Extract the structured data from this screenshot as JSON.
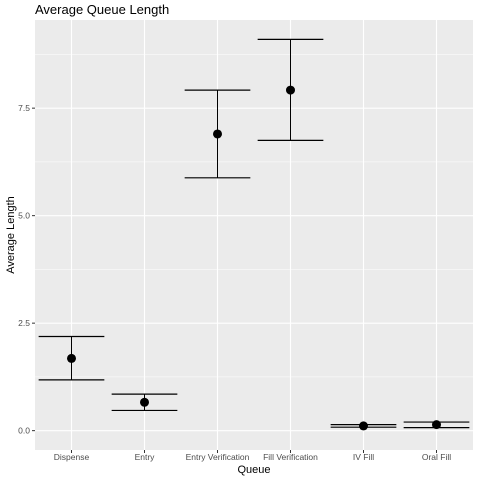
{
  "colors": {
    "panel_background": "#EBEBEB",
    "grid_major": "#FFFFFF",
    "point": "#000000",
    "errorbar": "#000000"
  },
  "chart_data": {
    "type": "scatter",
    "title": "Average Queue Length",
    "xlabel": "Queue",
    "ylabel": "Average Length",
    "categories": [
      "Dispense",
      "Entry",
      "Entry Verification",
      "Fill Verification",
      "IV Fill",
      "Oral Fill"
    ],
    "values": [
      1.68,
      0.66,
      6.9,
      7.92,
      0.11,
      0.14
    ],
    "error_low": [
      1.18,
      0.47,
      5.88,
      6.75,
      0.08,
      0.07
    ],
    "error_high": [
      2.19,
      0.85,
      7.92,
      9.1,
      0.14,
      0.2
    ],
    "yticks": [
      0.0,
      2.5,
      5.0,
      7.5
    ],
    "ytick_labels": [
      "0.0",
      "2.5",
      "5.0",
      "7.5"
    ],
    "ylim": [
      -0.45,
      9.55
    ],
    "grid": true,
    "legend": "none"
  }
}
